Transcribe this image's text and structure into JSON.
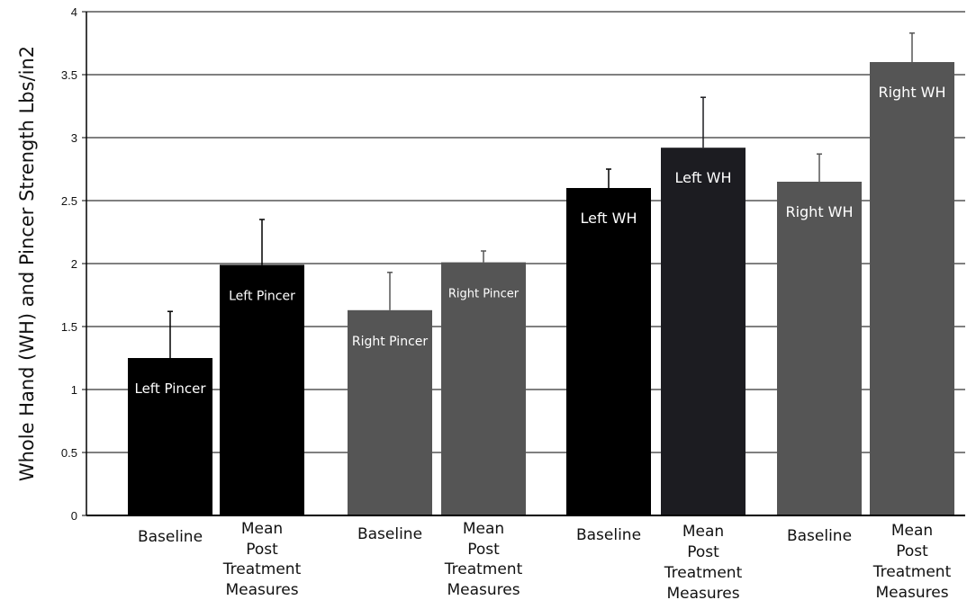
{
  "chart_data": {
    "type": "bar",
    "title": "",
    "ylabel": "Whole Hand (WH) and Pincer Strength Lbs/in2",
    "xlabel": "",
    "ylim": [
      0,
      4
    ],
    "yticks": [
      "0",
      "0.5",
      "1",
      "1.5",
      "2",
      "2.5",
      "3",
      "3.5",
      "4"
    ],
    "grid": true,
    "categories": [
      "Baseline",
      "Mean Post Treatment Measures",
      "Baseline",
      "Mean Post Treatment Measures",
      "Baseline",
      "Mean Post Treatment Measures",
      "Baseline",
      "Mean Post Treatment Measures"
    ],
    "bar_labels": [
      "Left Pincer",
      "Left Pincer",
      "Right Pincer",
      "Right Pincer",
      "Left WH",
      "Left WH",
      "Right WH",
      "Right WH"
    ],
    "values": [
      1.25,
      1.99,
      1.63,
      2.01,
      2.6,
      2.92,
      2.65,
      3.6
    ],
    "error_upper": [
      1.62,
      2.35,
      1.93,
      2.1,
      2.75,
      3.32,
      2.87,
      3.83
    ],
    "colors": [
      "#000000",
      "#000000",
      "#555555",
      "#555555",
      "#000000",
      "#1c1c21",
      "#555555",
      "#555555"
    ]
  }
}
